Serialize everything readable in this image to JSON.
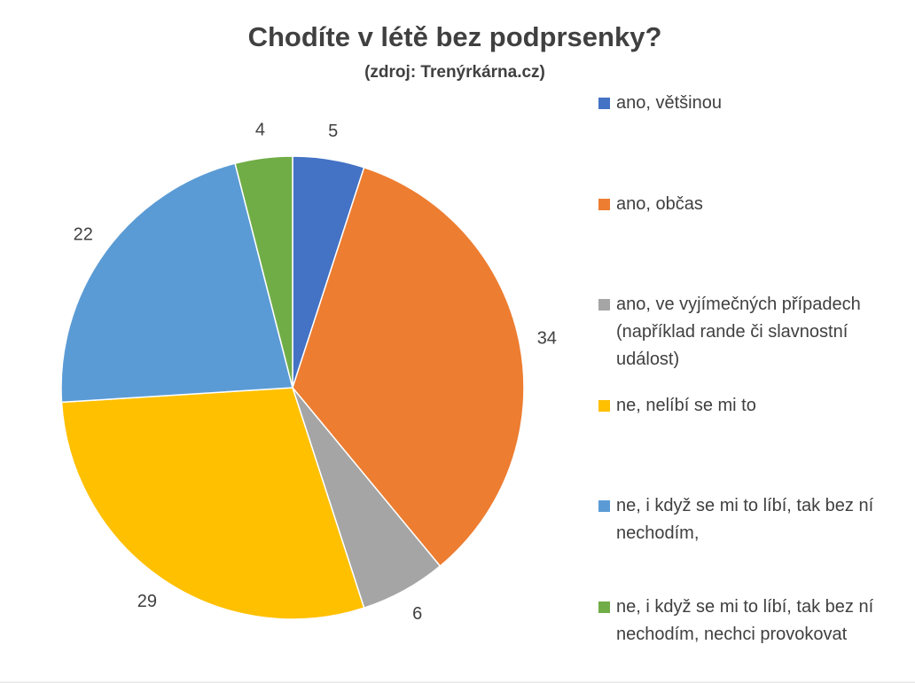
{
  "chart_data": {
    "type": "pie",
    "title": "Chodíte v létě bez podprsenky?",
    "subtitle": "(zdroj: Trenýrkárna.cz)",
    "categories": [
      "ano, většinou",
      "ano, občas",
      "ano, ve vyjímečných případech (například rande či slavnostní událost)",
      "ne, nelíbí se mi to",
      "ne, i když se mi to líbí, tak bez ní nechodím,",
      "ne, i když se mi to líbí, tak bez ní nechodím, nechci provokovat"
    ],
    "values": [
      5,
      34,
      6,
      29,
      22,
      4
    ],
    "colors": [
      "#4472c4",
      "#ed7d31",
      "#a5a5a5",
      "#ffc000",
      "#5b9bd5",
      "#70ad47"
    ],
    "legend": "right"
  }
}
